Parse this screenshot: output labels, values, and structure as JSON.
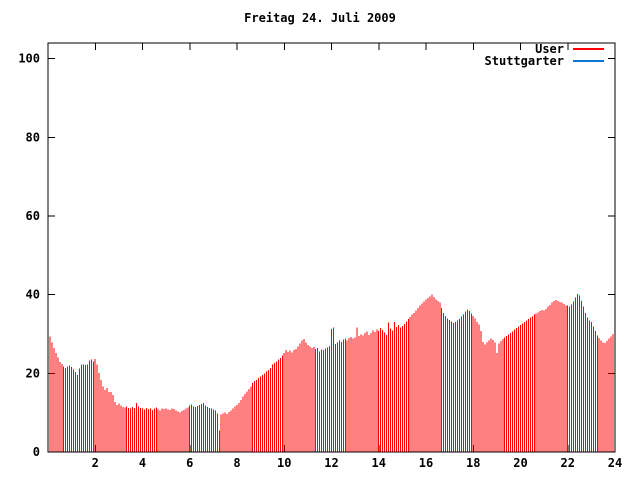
{
  "title": "Freitag 24. Juli 2009",
  "colors": {
    "background": "#ffffff",
    "axis": "#000000",
    "user": "#ff0000",
    "stuttgarter": "#0b75d8"
  },
  "legend": [
    {
      "label": "User",
      "color": "#ff0000"
    },
    {
      "label": "Stuttgarter",
      "color": "#0b75d8"
    }
  ],
  "chart_data": {
    "type": "bar",
    "style": "impulses",
    "title": "Freitag 24. Juli 2009",
    "xlabel": "",
    "ylabel": "",
    "xlim": [
      0,
      24
    ],
    "ylim": [
      0,
      104
    ],
    "x_ticks": [
      2,
      4,
      6,
      8,
      10,
      12,
      14,
      16,
      18,
      20,
      22,
      24
    ],
    "y_ticks": [
      0,
      20,
      40,
      60,
      80,
      100
    ],
    "grid": false,
    "legend_position": "top-right",
    "series": [
      {
        "name": "User",
        "color": "#ff0000",
        "style": "impulses",
        "x_start_hour": 0.08333,
        "x_step_hours": 0.08333,
        "values": [
          29.4,
          27.8,
          26.5,
          25.2,
          24.0,
          22.9,
          22.4,
          21.7,
          21.4,
          21.8,
          22.0,
          21.6,
          21.0,
          20.4,
          19.6,
          21.2,
          22.2,
          22.2,
          22.1,
          22.3,
          23.3,
          23.5,
          23.0,
          23.6,
          22.2,
          20.1,
          18.3,
          16.6,
          15.8,
          16.3,
          15.3,
          15.3,
          14.5,
          12.7,
          12.0,
          12.3,
          11.8,
          11.5,
          11.3,
          11.6,
          11.2,
          11.0,
          11.4,
          11.2,
          12.4,
          11.6,
          11.2,
          11.0,
          10.8,
          11.2,
          10.9,
          11.1,
          10.7,
          11.0,
          11.3,
          10.8,
          10.6,
          11.0,
          10.9,
          11.1,
          10.8,
          10.7,
          11.0,
          10.9,
          10.5,
          10.3,
          10.0,
          10.4,
          10.7,
          11.0,
          11.3,
          11.8,
          12.1,
          11.6,
          11.4,
          11.7,
          11.9,
          12.2,
          12.4,
          11.8,
          11.4,
          11.2,
          11.0,
          10.8,
          10.5,
          9.8,
          5.5,
          9.5,
          9.8,
          10.0,
          9.7,
          10.2,
          10.6,
          11.1,
          11.6,
          12.0,
          12.5,
          13.2,
          14.1,
          14.8,
          15.4,
          16.0,
          16.6,
          17.5,
          18.0,
          18.3,
          18.8,
          19.2,
          19.6,
          20.0,
          20.5,
          20.9,
          21.3,
          22.2,
          22.6,
          23.0,
          23.5,
          23.9,
          24.6,
          25.2,
          26.0,
          25.4,
          25.8,
          25.3,
          25.9,
          26.2,
          26.8,
          27.6,
          28.3,
          28.7,
          27.9,
          27.2,
          26.8,
          26.4,
          26.7,
          26.2,
          26.5,
          25.6,
          26.1,
          25.9,
          26.3,
          26.6,
          27.0,
          31.3,
          31.6,
          27.5,
          27.9,
          28.3,
          28.0,
          28.6,
          28.9,
          28.4,
          29.0,
          29.3,
          28.8,
          29.1,
          31.6,
          29.5,
          29.9,
          29.6,
          30.2,
          30.6,
          29.8,
          30.3,
          30.9,
          30.5,
          31.2,
          30.8,
          31.5,
          31.0,
          30.4,
          29.8,
          32.9,
          31.4,
          30.9,
          33.0,
          31.8,
          32.3,
          31.6,
          32.0,
          32.6,
          33.2,
          33.8,
          34.3,
          34.9,
          35.4,
          36.0,
          36.6,
          37.2,
          37.8,
          38.3,
          38.8,
          39.2,
          39.6,
          40.0,
          39.4,
          38.8,
          38.4,
          38.0,
          36.6,
          35.4,
          34.6,
          34.0,
          33.6,
          33.2,
          32.8,
          33.0,
          33.4,
          33.8,
          34.4,
          35.0,
          35.7,
          36.2,
          35.8,
          35.2,
          34.6,
          34.0,
          33.1,
          32.4,
          30.8,
          28.0,
          27.3,
          27.8,
          28.3,
          28.8,
          28.5,
          27.9,
          25.2,
          27.6,
          28.2,
          28.7,
          29.1,
          29.5,
          29.9,
          30.3,
          30.7,
          31.1,
          31.5,
          31.9,
          32.3,
          32.7,
          33.1,
          33.4,
          33.8,
          34.2,
          34.5,
          34.9,
          35.2,
          35.5,
          35.8,
          36.1,
          36.0,
          36.4,
          37.0,
          37.4,
          38.0,
          38.4,
          38.6,
          38.4,
          38.2,
          38.0,
          37.6,
          37.3,
          37.3,
          37.0,
          37.5,
          38.3,
          39.3,
          40.2,
          39.8,
          38.4,
          37.0,
          35.3,
          34.2,
          33.5,
          33.0,
          31.9,
          30.8,
          29.6,
          29.0,
          28.4,
          27.9,
          27.7,
          28.2,
          28.8,
          29.4,
          30.0,
          30.5
        ]
      },
      {
        "name": "Stuttgarter",
        "color": "#0b75d8",
        "style": "impulses",
        "x_start_hour": 0.08333,
        "x_step_hours": 0.08333,
        "values": []
      }
    ]
  }
}
